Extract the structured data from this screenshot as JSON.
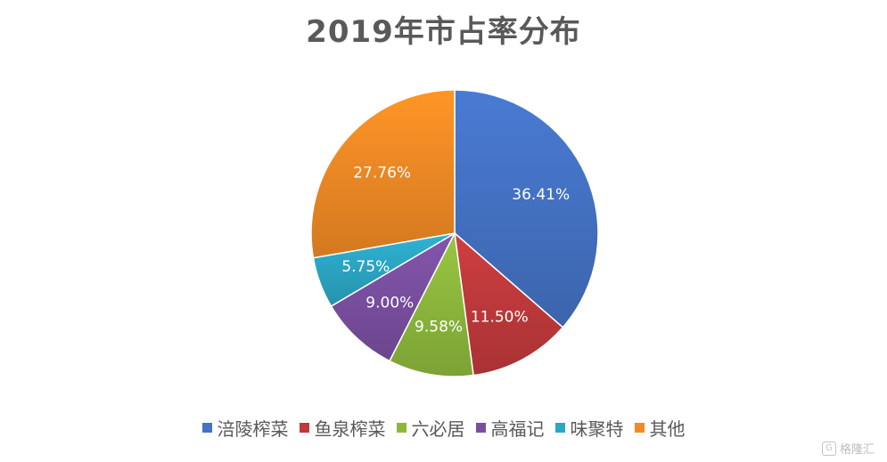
{
  "chart_data": {
    "type": "pie",
    "title": "2019年市占率分布",
    "categories": [
      "涪陵榨菜",
      "鱼泉榨菜",
      "六必居",
      "高福记",
      "味聚特",
      "其他"
    ],
    "values": [
      36.41,
      11.5,
      9.58,
      9.0,
      5.75,
      27.76
    ],
    "data_labels": [
      "36.41%",
      "11.50%",
      "9.58%",
      "9.00%",
      "5.75%",
      "27.76%"
    ],
    "colors": [
      "#4472C4",
      "#C0393B",
      "#8DB83C",
      "#7A4FA0",
      "#2BA6C4",
      "#F08A24"
    ],
    "legend_position": "bottom"
  },
  "watermark": {
    "icon": "gelonghui-logo-icon",
    "text": "格隆汇"
  }
}
